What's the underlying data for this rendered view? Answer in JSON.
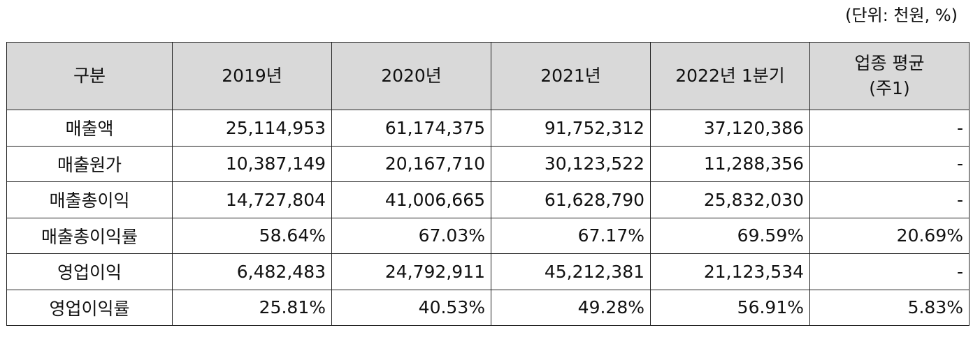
{
  "unit_note": "(단위: 천원, %)",
  "table": {
    "headers": [
      "구분",
      "2019년",
      "2020년",
      "2021년",
      "2022년 1분기"
    ],
    "industry_header": [
      "업종 평균",
      "(주1)"
    ],
    "rows": [
      {
        "label": "매출액",
        "values": [
          "25,114,953",
          "61,174,375",
          "91,752,312",
          "37,120,386",
          "-"
        ]
      },
      {
        "label": "매출원가",
        "values": [
          "10,387,149",
          "20,167,710",
          "30,123,522",
          "11,288,356",
          "-"
        ]
      },
      {
        "label": "매출총이익",
        "values": [
          "14,727,804",
          "41,006,665",
          "61,628,790",
          "25,832,030",
          "-"
        ]
      },
      {
        "label": "매출총이익률",
        "values": [
          "58.64%",
          "67.03%",
          "67.17%",
          "69.59%",
          "20.69%"
        ]
      },
      {
        "label": "영업이익",
        "values": [
          "6,482,483",
          "24,792,911",
          "45,212,381",
          "21,123,534",
          "-"
        ]
      },
      {
        "label": "영업이익률",
        "values": [
          "25.81%",
          "40.53%",
          "49.28%",
          "56.91%",
          "5.83%"
        ]
      }
    ]
  }
}
